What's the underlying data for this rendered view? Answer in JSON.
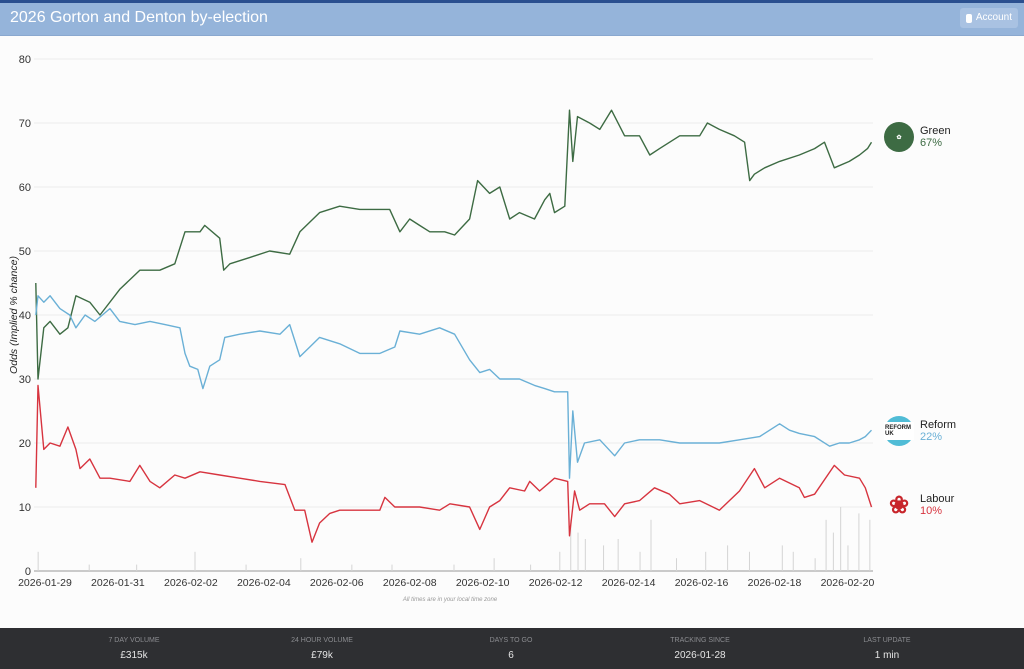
{
  "header": {
    "title": "2026 Gorton and Denton by-election",
    "account_label": "Account"
  },
  "note": "All times are in your local time zone",
  "legend": [
    {
      "name": "Green",
      "pct": "67%",
      "color": "#3d6b43"
    },
    {
      "name": "Reform",
      "pct": "22%",
      "color": "#6ab0d6"
    },
    {
      "name": "Labour",
      "pct": "10%",
      "color": "#d7343f"
    }
  ],
  "logos": {
    "reform_text": "REFORM UK"
  },
  "footer": [
    {
      "label": "7 Day Volume",
      "value": "£315k"
    },
    {
      "label": "24 Hour Volume",
      "value": "£79k"
    },
    {
      "label": "Days to go",
      "value": "6"
    },
    {
      "label": "Tracking since",
      "value": "2026-01-28"
    },
    {
      "label": "Last update",
      "value": "1 min"
    }
  ],
  "chart_data": {
    "type": "line",
    "title": "",
    "ylabel": "Odds (Implied % chance)",
    "xlabel": "",
    "x_unit": "days since 2026-01-29",
    "ylim": [
      0,
      80
    ],
    "xlim": [
      -0.3,
      22.7
    ],
    "yticks": [
      0,
      10,
      20,
      30,
      40,
      50,
      60,
      70,
      80
    ],
    "xticks": [
      {
        "d": 0,
        "label": "2026-01-29"
      },
      {
        "d": 2,
        "label": "2026-01-31"
      },
      {
        "d": 4,
        "label": "2026-02-02"
      },
      {
        "d": 6,
        "label": "2026-02-04"
      },
      {
        "d": 8,
        "label": "2026-02-06"
      },
      {
        "d": 10,
        "label": "2026-02-08"
      },
      {
        "d": 12,
        "label": "2026-02-10"
      },
      {
        "d": 14,
        "label": "2026-02-12"
      },
      {
        "d": 16,
        "label": "2026-02-14"
      },
      {
        "d": 18,
        "label": "2026-02-16"
      },
      {
        "d": 20,
        "label": "2026-02-18"
      },
      {
        "d": 22,
        "label": "2026-02-20"
      }
    ],
    "grid": true,
    "legend_position": "right",
    "series": [
      {
        "name": "Green",
        "color": "#3d6b43",
        "points": [
          [
            -0.25,
            45
          ],
          [
            -0.19,
            30
          ],
          [
            -0.03,
            38
          ],
          [
            0.14,
            39
          ],
          [
            0.41,
            37
          ],
          [
            0.63,
            38
          ],
          [
            0.85,
            43
          ],
          [
            1.23,
            42
          ],
          [
            1.51,
            40
          ],
          [
            2.05,
            44
          ],
          [
            2.6,
            47
          ],
          [
            3.15,
            47
          ],
          [
            3.56,
            48
          ],
          [
            3.84,
            53
          ],
          [
            4.25,
            53
          ],
          [
            4.38,
            54
          ],
          [
            4.79,
            52
          ],
          [
            4.9,
            47
          ],
          [
            5.07,
            48
          ],
          [
            5.62,
            49
          ],
          [
            6.16,
            50
          ],
          [
            6.71,
            49.5
          ],
          [
            6.99,
            53
          ],
          [
            7.53,
            56
          ],
          [
            8.08,
            57
          ],
          [
            8.63,
            56.5
          ],
          [
            9.45,
            56.5
          ],
          [
            9.73,
            53
          ],
          [
            10.0,
            55
          ],
          [
            10.27,
            54
          ],
          [
            10.55,
            53
          ],
          [
            10.96,
            53
          ],
          [
            11.23,
            52.5
          ],
          [
            11.64,
            55
          ],
          [
            11.86,
            61
          ],
          [
            12.19,
            59
          ],
          [
            12.47,
            60
          ],
          [
            12.74,
            55
          ],
          [
            13.01,
            56
          ],
          [
            13.42,
            55
          ],
          [
            13.7,
            58
          ],
          [
            13.84,
            59
          ],
          [
            13.97,
            56
          ],
          [
            14.25,
            57
          ],
          [
            14.38,
            72
          ],
          [
            14.47,
            64
          ],
          [
            14.6,
            71
          ],
          [
            14.93,
            70
          ],
          [
            15.21,
            69
          ],
          [
            15.53,
            72
          ],
          [
            15.89,
            68
          ],
          [
            16.3,
            68
          ],
          [
            16.58,
            65
          ],
          [
            16.85,
            66
          ],
          [
            17.4,
            68
          ],
          [
            17.95,
            68
          ],
          [
            18.16,
            70
          ],
          [
            18.49,
            69
          ],
          [
            18.9,
            68
          ],
          [
            19.18,
            67
          ],
          [
            19.32,
            61
          ],
          [
            19.45,
            62
          ],
          [
            19.73,
            63
          ],
          [
            20.14,
            64
          ],
          [
            20.68,
            65
          ],
          [
            21.1,
            66
          ],
          [
            21.37,
            67
          ],
          [
            21.64,
            63
          ],
          [
            22.05,
            64
          ],
          [
            22.33,
            65
          ],
          [
            22.55,
            66
          ],
          [
            22.66,
            67
          ]
        ]
      },
      {
        "name": "Reform",
        "color": "#6ab0d6",
        "points": [
          [
            -0.25,
            40
          ],
          [
            -0.19,
            43
          ],
          [
            -0.03,
            42
          ],
          [
            0.14,
            43
          ],
          [
            0.41,
            41
          ],
          [
            0.68,
            40
          ],
          [
            0.85,
            38
          ],
          [
            1.1,
            40
          ],
          [
            1.37,
            39
          ],
          [
            1.78,
            41
          ],
          [
            2.05,
            39
          ],
          [
            2.47,
            38.5
          ],
          [
            2.88,
            39
          ],
          [
            3.29,
            38.5
          ],
          [
            3.7,
            38
          ],
          [
            3.84,
            34
          ],
          [
            3.97,
            32
          ],
          [
            4.19,
            31.5
          ],
          [
            4.33,
            28.5
          ],
          [
            4.52,
            32
          ],
          [
            4.79,
            33
          ],
          [
            4.93,
            36.5
          ],
          [
            5.34,
            37
          ],
          [
            5.89,
            37.5
          ],
          [
            6.44,
            37
          ],
          [
            6.71,
            38.5
          ],
          [
            6.99,
            33.5
          ],
          [
            7.26,
            35
          ],
          [
            7.53,
            36.5
          ],
          [
            8.08,
            35.5
          ],
          [
            8.63,
            34
          ],
          [
            9.18,
            34
          ],
          [
            9.59,
            35
          ],
          [
            9.73,
            37.5
          ],
          [
            10.27,
            37
          ],
          [
            10.82,
            38
          ],
          [
            11.23,
            37
          ],
          [
            11.64,
            33
          ],
          [
            11.92,
            31
          ],
          [
            12.19,
            31.5
          ],
          [
            12.47,
            30
          ],
          [
            13.01,
            30
          ],
          [
            13.42,
            29
          ],
          [
            13.7,
            28.5
          ],
          [
            13.97,
            28
          ],
          [
            14.33,
            28
          ],
          [
            14.38,
            14.5
          ],
          [
            14.47,
            25
          ],
          [
            14.6,
            17
          ],
          [
            14.79,
            20
          ],
          [
            15.21,
            20.5
          ],
          [
            15.62,
            18
          ],
          [
            15.89,
            20
          ],
          [
            16.3,
            20.5
          ],
          [
            16.85,
            20.5
          ],
          [
            17.4,
            20
          ],
          [
            17.95,
            20
          ],
          [
            18.49,
            20
          ],
          [
            19.04,
            20.5
          ],
          [
            19.59,
            21
          ],
          [
            20.14,
            23
          ],
          [
            20.41,
            22
          ],
          [
            20.68,
            21.5
          ],
          [
            21.1,
            21
          ],
          [
            21.51,
            19.5
          ],
          [
            21.78,
            20
          ],
          [
            22.05,
            20
          ],
          [
            22.33,
            20.5
          ],
          [
            22.49,
            21
          ],
          [
            22.66,
            22
          ]
        ]
      },
      {
        "name": "Labour",
        "color": "#d7343f",
        "points": [
          [
            -0.25,
            13
          ],
          [
            -0.19,
            29
          ],
          [
            -0.03,
            19
          ],
          [
            0.14,
            20
          ],
          [
            0.41,
            19.5
          ],
          [
            0.63,
            22.5
          ],
          [
            0.85,
            19
          ],
          [
            0.96,
            16
          ],
          [
            1.23,
            17.5
          ],
          [
            1.37,
            16
          ],
          [
            1.51,
            14.5
          ],
          [
            1.78,
            14.5
          ],
          [
            2.33,
            14
          ],
          [
            2.6,
            16.5
          ],
          [
            2.88,
            14
          ],
          [
            3.15,
            13
          ],
          [
            3.56,
            15
          ],
          [
            3.84,
            14.5
          ],
          [
            4.25,
            15.5
          ],
          [
            4.79,
            15
          ],
          [
            5.34,
            14.5
          ],
          [
            5.89,
            14
          ],
          [
            6.58,
            13.5
          ],
          [
            6.85,
            9.5
          ],
          [
            7.12,
            9.5
          ],
          [
            7.32,
            4.5
          ],
          [
            7.53,
            7.5
          ],
          [
            7.81,
            9
          ],
          [
            8.08,
            9.5
          ],
          [
            8.63,
            9.5
          ],
          [
            9.18,
            9.5
          ],
          [
            9.32,
            11.5
          ],
          [
            9.59,
            10
          ],
          [
            10.27,
            10
          ],
          [
            10.82,
            9.5
          ],
          [
            11.1,
            10.5
          ],
          [
            11.64,
            10
          ],
          [
            11.92,
            6.5
          ],
          [
            12.19,
            10
          ],
          [
            12.47,
            11
          ],
          [
            12.74,
            13
          ],
          [
            13.15,
            12.5
          ],
          [
            13.29,
            14
          ],
          [
            13.56,
            12.5
          ],
          [
            13.97,
            14.5
          ],
          [
            14.33,
            14
          ],
          [
            14.38,
            5.5
          ],
          [
            14.52,
            12.5
          ],
          [
            14.66,
            9.5
          ],
          [
            14.93,
            10.5
          ],
          [
            15.34,
            10.5
          ],
          [
            15.62,
            8.5
          ],
          [
            15.89,
            10.5
          ],
          [
            16.3,
            11
          ],
          [
            16.71,
            13
          ],
          [
            17.12,
            12
          ],
          [
            17.4,
            10.5
          ],
          [
            17.95,
            11
          ],
          [
            18.49,
            9.5
          ],
          [
            19.04,
            12.5
          ],
          [
            19.45,
            16
          ],
          [
            19.73,
            13
          ],
          [
            20.14,
            14.5
          ],
          [
            20.68,
            13
          ],
          [
            20.82,
            11.5
          ],
          [
            21.1,
            12
          ],
          [
            21.64,
            16.5
          ],
          [
            21.92,
            15
          ],
          [
            22.33,
            14.5
          ],
          [
            22.49,
            13
          ],
          [
            22.66,
            10
          ]
        ]
      }
    ],
    "volume_bars": [
      [
        -0.2,
        3
      ],
      [
        1.2,
        1
      ],
      [
        2.5,
        1
      ],
      [
        4.1,
        3
      ],
      [
        5.5,
        1
      ],
      [
        7.0,
        2
      ],
      [
        8.4,
        1
      ],
      [
        9.5,
        1
      ],
      [
        11.2,
        1
      ],
      [
        12.3,
        2
      ],
      [
        13.3,
        1
      ],
      [
        14.1,
        3
      ],
      [
        14.4,
        8
      ],
      [
        14.6,
        6
      ],
      [
        14.8,
        5
      ],
      [
        15.3,
        4
      ],
      [
        15.7,
        5
      ],
      [
        16.3,
        3
      ],
      [
        16.6,
        8
      ],
      [
        17.3,
        2
      ],
      [
        18.1,
        3
      ],
      [
        18.7,
        4
      ],
      [
        19.3,
        3
      ],
      [
        20.2,
        4
      ],
      [
        20.5,
        3
      ],
      [
        21.1,
        2
      ],
      [
        21.4,
        8
      ],
      [
        21.6,
        6
      ],
      [
        21.8,
        10
      ],
      [
        22.0,
        4
      ],
      [
        22.3,
        9
      ],
      [
        22.6,
        8
      ]
    ]
  }
}
